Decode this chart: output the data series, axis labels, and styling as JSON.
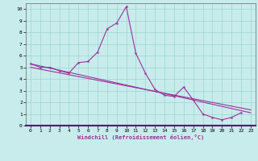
{
  "xlabel": "Windchill (Refroidissement éolien,°C)",
  "x_data": [
    0,
    1,
    2,
    3,
    4,
    5,
    6,
    7,
    8,
    9,
    10,
    11,
    12,
    13,
    14,
    15,
    16,
    17,
    18,
    19,
    20,
    21,
    22,
    23
  ],
  "y_line1": [
    5.3,
    5.0,
    5.0,
    4.7,
    4.5,
    5.4,
    5.5,
    6.3,
    8.3,
    8.8,
    10.2,
    6.2,
    4.5,
    3.1,
    2.6,
    2.5,
    3.3,
    2.2,
    1.0,
    0.7,
    0.5,
    0.7,
    1.1,
    null
  ],
  "y_line2_x": [
    0,
    23
  ],
  "y_line2_y": [
    5.3,
    1.1
  ],
  "y_line3_x": [
    0,
    23
  ],
  "y_line3_y": [
    5.0,
    1.35
  ],
  "xlim": [
    -0.5,
    23.5
  ],
  "ylim": [
    0,
    10.5
  ],
  "yticks": [
    0,
    1,
    2,
    3,
    4,
    5,
    6,
    7,
    8,
    9,
    10
  ],
  "xticks": [
    0,
    1,
    2,
    3,
    4,
    5,
    6,
    7,
    8,
    9,
    10,
    11,
    12,
    13,
    14,
    15,
    16,
    17,
    18,
    19,
    20,
    21,
    22,
    23
  ],
  "line_color": "#993399",
  "bg_color": "#c8ecec",
  "grid_color": "#9dd4d4",
  "marker": "*",
  "marker_size": 3,
  "line_width": 0.8,
  "tick_fontsize": 4.5,
  "xlabel_fontsize": 5.0
}
